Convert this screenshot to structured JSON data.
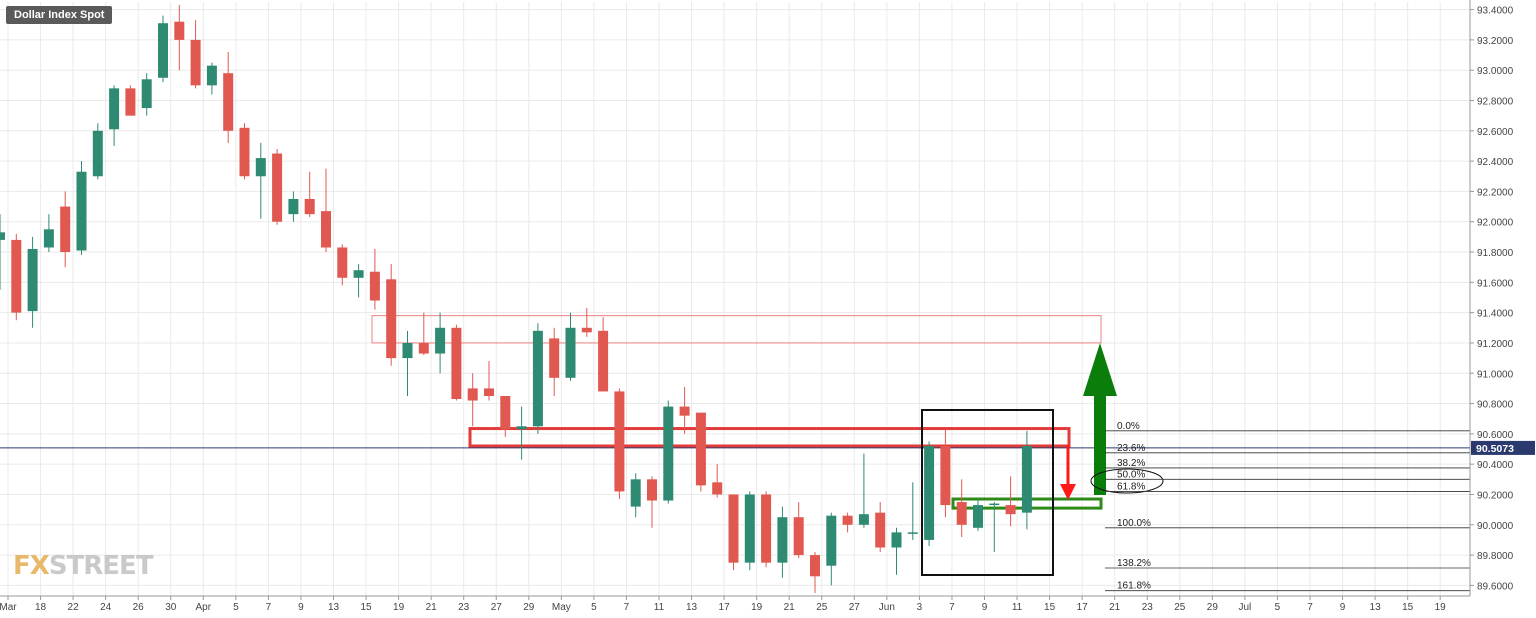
{
  "app": {
    "title": "Dollar Index Spot",
    "logo_left": "FX",
    "logo_right": "STREET"
  },
  "colors": {
    "up": "#2f8a73",
    "down": "#e0584f",
    "grid": "#eaeaea",
    "axis_text": "#444444",
    "price_line": "#2b3a6e",
    "resistance": "#e33a3a",
    "support": "#2e8b17",
    "arrow_up": "#0a7d0a",
    "arrow_down": "#ff1a1a"
  },
  "chart_data": {
    "type": "candlestick",
    "title": "Dollar Index Spot",
    "ylim": [
      89.53,
      93.45
    ],
    "y_ticks": [
      "89.6000",
      "89.8000",
      "90.0000",
      "90.2000",
      "90.4000",
      "90.6000",
      "90.8000",
      "91.0000",
      "91.2000",
      "91.4000",
      "91.6000",
      "91.8000",
      "92.0000",
      "92.2000",
      "92.4000",
      "92.6000",
      "92.8000",
      "93.0000",
      "93.2000",
      "93.4000"
    ],
    "x_ticks": [
      "Mar",
      "18",
      "22",
      "24",
      "26",
      "30",
      "Apr",
      "5",
      "7",
      "9",
      "13",
      "15",
      "19",
      "21",
      "23",
      "27",
      "29",
      "May",
      "5",
      "7",
      "11",
      "13",
      "17",
      "19",
      "21",
      "25",
      "27",
      "Jun",
      "3",
      "7",
      "9",
      "11",
      "15",
      "17",
      "21",
      "23",
      "25",
      "29",
      "Jul",
      "5",
      "7",
      "9",
      "13",
      "15",
      "19"
    ],
    "current_price": "90.5073",
    "current_price_value": 90.5073,
    "candles": [
      {
        "o": 91.88,
        "h": 92.05,
        "l": 91.55,
        "c": 91.93
      },
      {
        "o": 91.88,
        "h": 91.92,
        "l": 91.35,
        "c": 91.4
      },
      {
        "o": 91.41,
        "h": 91.9,
        "l": 91.3,
        "c": 91.82
      },
      {
        "o": 91.83,
        "h": 92.05,
        "l": 91.8,
        "c": 91.95
      },
      {
        "o": 92.1,
        "h": 92.2,
        "l": 91.7,
        "c": 91.8
      },
      {
        "o": 91.81,
        "h": 92.4,
        "l": 91.78,
        "c": 92.33
      },
      {
        "o": 92.3,
        "h": 92.65,
        "l": 92.28,
        "c": 92.6
      },
      {
        "o": 92.61,
        "h": 92.9,
        "l": 92.5,
        "c": 92.88
      },
      {
        "o": 92.88,
        "h": 92.9,
        "l": 92.7,
        "c": 92.7
      },
      {
        "o": 92.75,
        "h": 92.98,
        "l": 92.7,
        "c": 92.94
      },
      {
        "o": 92.95,
        "h": 93.36,
        "l": 92.92,
        "c": 93.31
      },
      {
        "o": 93.32,
        "h": 93.43,
        "l": 93.0,
        "c": 93.2
      },
      {
        "o": 93.2,
        "h": 93.33,
        "l": 92.88,
        "c": 92.9
      },
      {
        "o": 92.9,
        "h": 93.05,
        "l": 92.84,
        "c": 93.03
      },
      {
        "o": 92.98,
        "h": 93.12,
        "l": 92.52,
        "c": 92.6
      },
      {
        "o": 92.62,
        "h": 92.65,
        "l": 92.28,
        "c": 92.3
      },
      {
        "o": 92.3,
        "h": 92.52,
        "l": 92.02,
        "c": 92.42
      },
      {
        "o": 92.45,
        "h": 92.48,
        "l": 91.98,
        "c": 92.0
      },
      {
        "o": 92.05,
        "h": 92.2,
        "l": 92.0,
        "c": 92.15
      },
      {
        "o": 92.15,
        "h": 92.33,
        "l": 92.03,
        "c": 92.05
      },
      {
        "o": 92.07,
        "h": 92.35,
        "l": 91.8,
        "c": 91.83
      },
      {
        "o": 91.83,
        "h": 91.85,
        "l": 91.58,
        "c": 91.63
      },
      {
        "o": 91.63,
        "h": 91.72,
        "l": 91.5,
        "c": 91.68
      },
      {
        "o": 91.67,
        "h": 91.82,
        "l": 91.42,
        "c": 91.48
      },
      {
        "o": 91.62,
        "h": 91.72,
        "l": 91.05,
        "c": 91.1
      },
      {
        "o": 91.1,
        "h": 91.28,
        "l": 90.85,
        "c": 91.2
      },
      {
        "o": 91.2,
        "h": 91.4,
        "l": 91.12,
        "c": 91.13
      },
      {
        "o": 91.13,
        "h": 91.4,
        "l": 91.0,
        "c": 91.3
      },
      {
        "o": 91.3,
        "h": 91.32,
        "l": 90.82,
        "c": 90.83
      },
      {
        "o": 90.9,
        "h": 91.0,
        "l": 90.65,
        "c": 90.82
      },
      {
        "o": 90.9,
        "h": 91.08,
        "l": 90.82,
        "c": 90.85
      },
      {
        "o": 90.85,
        "h": 90.85,
        "l": 90.58,
        "c": 90.63
      },
      {
        "o": 90.63,
        "h": 90.78,
        "l": 90.43,
        "c": 90.65
      },
      {
        "o": 90.65,
        "h": 91.33,
        "l": 90.6,
        "c": 91.28
      },
      {
        "o": 91.23,
        "h": 91.3,
        "l": 90.85,
        "c": 90.97
      },
      {
        "o": 90.97,
        "h": 91.4,
        "l": 90.95,
        "c": 91.3
      },
      {
        "o": 91.3,
        "h": 91.43,
        "l": 91.24,
        "c": 91.27
      },
      {
        "o": 91.28,
        "h": 91.37,
        "l": 90.88,
        "c": 90.88
      },
      {
        "o": 90.88,
        "h": 90.9,
        "l": 90.17,
        "c": 90.22
      },
      {
        "o": 90.12,
        "h": 90.34,
        "l": 90.05,
        "c": 90.3
      },
      {
        "o": 90.3,
        "h": 90.32,
        "l": 89.98,
        "c": 90.16
      },
      {
        "o": 90.16,
        "h": 90.82,
        "l": 90.14,
        "c": 90.78
      },
      {
        "o": 90.78,
        "h": 90.91,
        "l": 90.6,
        "c": 90.72
      },
      {
        "o": 90.74,
        "h": 90.74,
        "l": 90.22,
        "c": 90.26
      },
      {
        "o": 90.28,
        "h": 90.4,
        "l": 90.18,
        "c": 90.2
      },
      {
        "o": 90.2,
        "h": 90.2,
        "l": 89.7,
        "c": 89.75
      },
      {
        "o": 89.75,
        "h": 90.22,
        "l": 89.7,
        "c": 90.2
      },
      {
        "o": 90.2,
        "h": 90.22,
        "l": 89.72,
        "c": 89.75
      },
      {
        "o": 89.75,
        "h": 90.12,
        "l": 89.65,
        "c": 90.05
      },
      {
        "o": 90.05,
        "h": 90.15,
        "l": 89.78,
        "c": 89.8
      },
      {
        "o": 89.8,
        "h": 89.82,
        "l": 89.55,
        "c": 89.66
      },
      {
        "o": 89.73,
        "h": 90.08,
        "l": 89.6,
        "c": 90.06
      },
      {
        "o": 90.06,
        "h": 90.08,
        "l": 89.95,
        "c": 90.0
      },
      {
        "o": 90.0,
        "h": 90.47,
        "l": 89.98,
        "c": 90.07
      },
      {
        "o": 90.08,
        "h": 90.15,
        "l": 89.82,
        "c": 89.85
      },
      {
        "o": 89.85,
        "h": 89.98,
        "l": 89.67,
        "c": 89.95
      },
      {
        "o": 89.94,
        "h": 90.28,
        "l": 89.9,
        "c": 89.95
      },
      {
        "o": 89.9,
        "h": 90.55,
        "l": 89.86,
        "c": 90.52
      },
      {
        "o": 90.52,
        "h": 90.63,
        "l": 90.05,
        "c": 90.13
      },
      {
        "o": 90.15,
        "h": 90.3,
        "l": 89.92,
        "c": 90.0
      },
      {
        "o": 89.98,
        "h": 90.17,
        "l": 89.96,
        "c": 90.13
      },
      {
        "o": 90.13,
        "h": 90.15,
        "l": 89.82,
        "c": 90.14
      },
      {
        "o": 90.13,
        "h": 90.32,
        "l": 89.99,
        "c": 90.07
      },
      {
        "o": 90.08,
        "h": 90.62,
        "l": 89.97,
        "c": 90.52
      }
    ],
    "fib_levels": [
      {
        "label": "0.0%",
        "value": 90.62
      },
      {
        "label": "23.6%",
        "value": 90.475
      },
      {
        "label": "38.2%",
        "value": 90.375
      },
      {
        "label": "50.0%",
        "value": 90.3
      },
      {
        "label": "61.8%",
        "value": 90.22
      },
      {
        "label": "100.0%",
        "value": 89.98
      },
      {
        "label": "138.2%",
        "value": 89.715
      },
      {
        "label": "161.8%",
        "value": 89.565
      }
    ],
    "zones": [
      {
        "name": "upper-resistance-zone",
        "type": "resistance",
        "y_top": 91.38,
        "y_bottom": 91.2
      },
      {
        "name": "mid-resistance-zone",
        "type": "resistance",
        "y_top": 90.635,
        "y_bottom": 90.52
      },
      {
        "name": "support-zone",
        "type": "support",
        "y_top": 90.17,
        "y_bottom": 90.11
      }
    ]
  }
}
